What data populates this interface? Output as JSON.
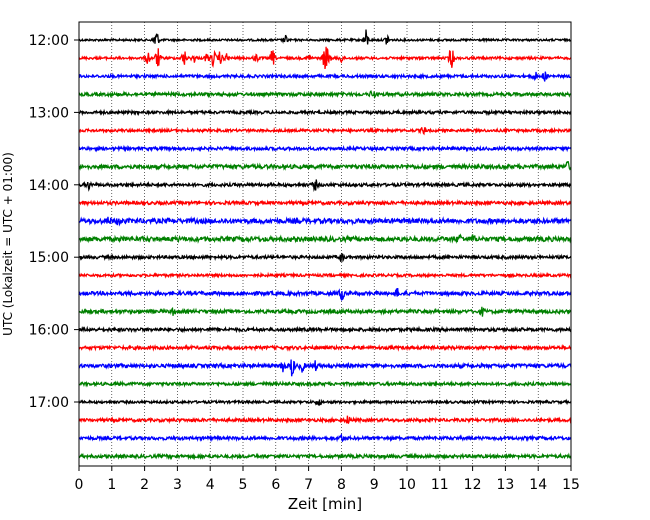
{
  "chart_data": {
    "type": "line",
    "title": "",
    "xlabel": "Zeit  [min]",
    "ylabel": "UTC (Lokalzeit = UTC + 01:00)",
    "xlim": [
      0,
      15
    ],
    "x_ticks": [
      0,
      1,
      2,
      3,
      4,
      5,
      6,
      7,
      8,
      9,
      10,
      11,
      12,
      13,
      14,
      15
    ],
    "y_ticks": [
      "12:00",
      "13:00",
      "14:00",
      "15:00",
      "16:00",
      "17:00"
    ],
    "grid": "vertical dotted at each minute",
    "legend": "none",
    "trace_colors": [
      "#000000",
      "#ff0000",
      "#0000ff",
      "#008000"
    ],
    "series": [
      {
        "start": "12:00",
        "amplitude": 1.0,
        "events": [
          {
            "minute": 2.35,
            "strength": 6
          },
          {
            "minute": 6.3,
            "strength": 2
          },
          {
            "minute": 8.75,
            "strength": 5
          },
          {
            "minute": 9.4,
            "strength": 3
          }
        ]
      },
      {
        "start": "12:15",
        "amplitude": 1.2,
        "events": [
          {
            "minute": 2.1,
            "strength": 3
          },
          {
            "minute": 2.4,
            "strength": 5
          },
          {
            "minute": 3.2,
            "strength": 4
          },
          {
            "minute": 3.5,
            "strength": 2
          },
          {
            "minute": 3.9,
            "strength": 2
          },
          {
            "minute": 4.1,
            "strength": 4
          },
          {
            "minute": 4.3,
            "strength": 3
          },
          {
            "minute": 4.5,
            "strength": 2
          },
          {
            "minute": 5.4,
            "strength": 2
          },
          {
            "minute": 5.9,
            "strength": 4
          },
          {
            "minute": 7.0,
            "strength": 2
          },
          {
            "minute": 7.5,
            "strength": 6
          },
          {
            "minute": 7.6,
            "strength": 4
          },
          {
            "minute": 8.0,
            "strength": 2
          },
          {
            "minute": 11.35,
            "strength": 6
          }
        ]
      },
      {
        "start": "12:30",
        "amplitude": 1.4,
        "events": [
          {
            "minute": 13.9,
            "strength": 2
          },
          {
            "minute": 14.2,
            "strength": 2
          }
        ]
      },
      {
        "start": "12:45",
        "amplitude": 1.6,
        "events": [
          {
            "minute": 8.95,
            "strength": 2.5
          }
        ]
      },
      {
        "start": "13:00",
        "amplitude": 1.4,
        "events": []
      },
      {
        "start": "13:15",
        "amplitude": 1.3,
        "events": [
          {
            "minute": 10.5,
            "strength": 2
          }
        ]
      },
      {
        "start": "13:30",
        "amplitude": 1.5,
        "events": []
      },
      {
        "start": "13:45",
        "amplitude": 2.0,
        "events": [
          {
            "minute": 14.9,
            "strength": 2
          }
        ]
      },
      {
        "start": "14:00",
        "amplitude": 1.5,
        "events": [
          {
            "minute": 0.3,
            "strength": 2
          },
          {
            "minute": 7.2,
            "strength": 2.5
          }
        ]
      },
      {
        "start": "14:15",
        "amplitude": 1.6,
        "events": []
      },
      {
        "start": "14:30",
        "amplitude": 2.4,
        "events": [
          {
            "minute": 0.9,
            "strength": 1.5
          },
          {
            "minute": 1.2,
            "strength": 1.5
          }
        ]
      },
      {
        "start": "14:45",
        "amplitude": 2.3,
        "events": [
          {
            "minute": 11.6,
            "strength": 2
          },
          {
            "minute": 12.0,
            "strength": 1.5
          }
        ]
      },
      {
        "start": "15:00",
        "amplitude": 1.5,
        "events": [
          {
            "minute": 8.0,
            "strength": 2
          }
        ]
      },
      {
        "start": "15:15",
        "amplitude": 1.3,
        "events": []
      },
      {
        "start": "15:30",
        "amplitude": 1.8,
        "events": [
          {
            "minute": 8.0,
            "strength": 3.5
          },
          {
            "minute": 9.7,
            "strength": 2
          }
        ]
      },
      {
        "start": "15:45",
        "amplitude": 1.7,
        "events": [
          {
            "minute": 2.9,
            "strength": 1.8
          },
          {
            "minute": 12.3,
            "strength": 1.8
          }
        ]
      },
      {
        "start": "16:00",
        "amplitude": 1.6,
        "events": []
      },
      {
        "start": "16:15",
        "amplitude": 1.6,
        "events": []
      },
      {
        "start": "16:30",
        "amplitude": 1.8,
        "events": [
          {
            "minute": 6.5,
            "strength": 5
          },
          {
            "minute": 6.2,
            "strength": 3
          },
          {
            "minute": 6.8,
            "strength": 3
          },
          {
            "minute": 7.2,
            "strength": 2
          }
        ]
      },
      {
        "start": "16:45",
        "amplitude": 1.5,
        "events": []
      },
      {
        "start": "17:00",
        "amplitude": 1.2,
        "events": [
          {
            "minute": 7.3,
            "strength": 2
          }
        ]
      },
      {
        "start": "17:15",
        "amplitude": 1.5,
        "events": [
          {
            "minute": 8.2,
            "strength": 2
          }
        ]
      },
      {
        "start": "17:30",
        "amplitude": 1.6,
        "events": [
          {
            "minute": 8.0,
            "strength": 1.8
          }
        ]
      },
      {
        "start": "17:45",
        "amplitude": 1.6,
        "events": []
      }
    ]
  }
}
